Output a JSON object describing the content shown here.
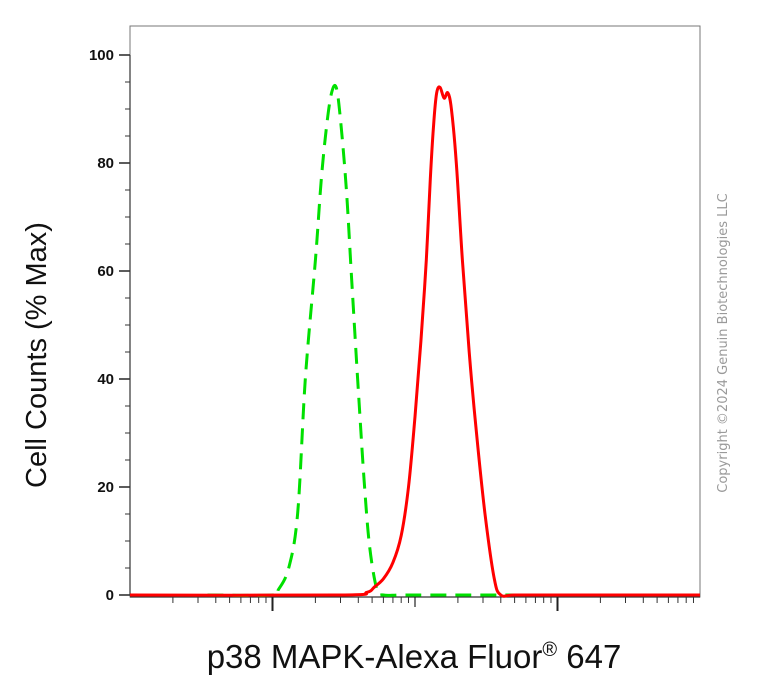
{
  "chart_data": {
    "type": "line",
    "title": "",
    "xlabel_main": "p38 MAPK-Alexa Fluor",
    "xlabel_sup": "®",
    "xlabel_tail": " 647",
    "ylabel": "Cell Counts (% Max)",
    "xscale": "log",
    "xlim": [
      10,
      100000
    ],
    "ylim": [
      0,
      100
    ],
    "yticks": [
      0,
      20,
      40,
      60,
      80,
      100
    ],
    "grid": false,
    "legend": "none",
    "series": [
      {
        "color": "#00e000",
        "style": "dashed",
        "x": [
          35,
          100,
          110,
          130,
          150,
          170,
          200,
          220,
          240,
          260,
          280,
          300,
          330,
          360,
          400,
          440,
          480,
          540,
          600,
          800,
          1500,
          10000,
          100000
        ],
        "y": [
          0,
          0,
          1,
          5,
          15,
          40,
          62,
          77,
          87,
          93,
          94,
          88,
          75,
          58,
          38,
          21,
          9,
          1,
          0,
          0,
          0,
          0,
          0
        ]
      },
      {
        "color": "#ff0000",
        "style": "solid",
        "x": [
          10,
          300,
          460,
          520,
          600,
          700,
          800,
          900,
          1000,
          1100,
          1200,
          1280,
          1350,
          1420,
          1500,
          1600,
          1700,
          1800,
          1950,
          2150,
          2400,
          2700,
          3100,
          3600,
          4000,
          5000,
          10000,
          100000
        ],
        "y": [
          0,
          0,
          0.5,
          1.5,
          3,
          6,
          11,
          20,
          33,
          47,
          62,
          77,
          87,
          93,
          94,
          92,
          93,
          90,
          80,
          62,
          45,
          30,
          15,
          3,
          0,
          0,
          0,
          0
        ]
      }
    ]
  },
  "watermark": "Copyright ©2024 Genuin Biotechnologies LLC"
}
